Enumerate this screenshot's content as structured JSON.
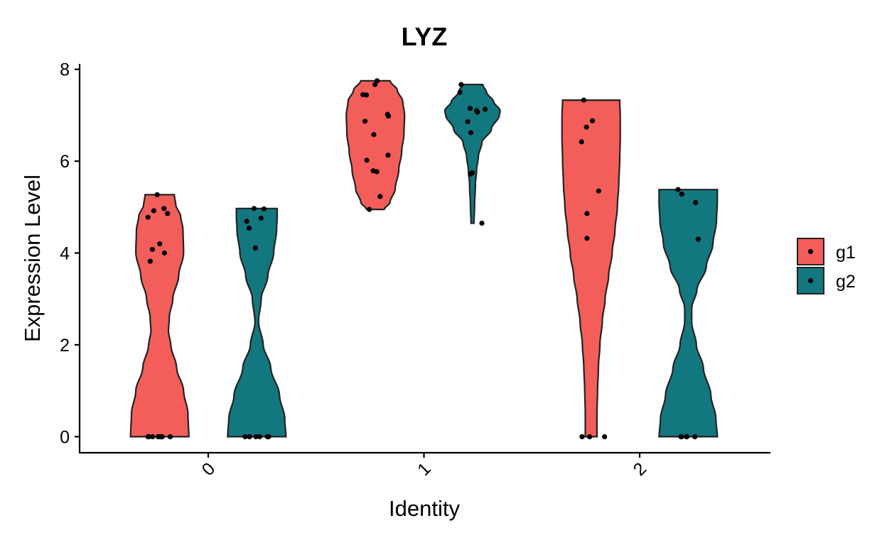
{
  "chart_data": {
    "type": "violin",
    "title": "LYZ",
    "xlabel": "Identity",
    "ylabel": "Expression Level",
    "categories": [
      "0",
      "1",
      "2"
    ],
    "ylim": [
      -0.35,
      8.15
    ],
    "yticks": [
      0,
      2,
      4,
      6,
      8
    ],
    "grid": false,
    "legend_position": "right",
    "x_tick_rotation_deg": 45,
    "series": [
      {
        "name": "g1",
        "color": "#F45E5A",
        "groups": [
          {
            "category": "0",
            "max_halfwidth": 0.225,
            "density": [
              [
                0,
                1.0
              ],
              [
                0.5,
                0.97
              ],
              [
                1.0,
                0.82
              ],
              [
                1.5,
                0.58
              ],
              [
                2.0,
                0.38
              ],
              [
                2.3,
                0.3
              ],
              [
                2.6,
                0.33
              ],
              [
                3.0,
                0.45
              ],
              [
                3.5,
                0.65
              ],
              [
                4.0,
                0.82
              ],
              [
                4.5,
                0.8
              ],
              [
                4.8,
                0.72
              ],
              [
                5.05,
                0.55
              ],
              [
                5.27,
                0.5
              ]
            ],
            "points": [
              0,
              0,
              0,
              0,
              0,
              0,
              0,
              0,
              0,
              5.27,
              4.92,
              4.86,
              4.97,
              4.78,
              4.2,
              4.08,
              4.0,
              3.82
            ]
          },
          {
            "category": "1",
            "max_halfwidth": 0.225,
            "density": [
              [
                4.95,
                0.3
              ],
              [
                5.1,
                0.5
              ],
              [
                5.4,
                0.68
              ],
              [
                5.8,
                0.8
              ],
              [
                6.2,
                0.9
              ],
              [
                6.6,
                0.98
              ],
              [
                7.0,
                1.0
              ],
              [
                7.3,
                0.94
              ],
              [
                7.55,
                0.75
              ],
              [
                7.75,
                0.5
              ]
            ],
            "points": [
              7.75,
              7.67,
              7.44,
              7.45,
              7.02,
              6.98,
              6.87,
              6.58,
              6.13,
              6.02,
              5.79,
              5.77,
              5.23,
              4.95
            ]
          },
          {
            "category": "2",
            "max_halfwidth": 0.225,
            "density": [
              [
                0,
                0.2
              ],
              [
                0.5,
                0.2
              ],
              [
                1.0,
                0.22
              ],
              [
                1.5,
                0.25
              ],
              [
                2.0,
                0.3
              ],
              [
                2.5,
                0.38
              ],
              [
                3.0,
                0.48
              ],
              [
                3.5,
                0.6
              ],
              [
                4.0,
                0.72
              ],
              [
                4.5,
                0.82
              ],
              [
                5.0,
                0.9
              ],
              [
                5.5,
                0.95
              ],
              [
                6.0,
                0.98
              ],
              [
                6.5,
                1.0
              ],
              [
                7.0,
                1.0
              ],
              [
                7.33,
                0.98
              ]
            ],
            "points": [
              0,
              0,
              0,
              7.33,
              6.88,
              6.74,
              6.42,
              5.35,
              4.86,
              4.32
            ]
          }
        ]
      },
      {
        "name": "g2",
        "color": "#137780",
        "groups": [
          {
            "category": "0",
            "max_halfwidth": 0.225,
            "density": [
              [
                0,
                1.0
              ],
              [
                0.4,
                0.96
              ],
              [
                0.9,
                0.78
              ],
              [
                1.5,
                0.48
              ],
              [
                2.0,
                0.22
              ],
              [
                2.5,
                0.06
              ],
              [
                3.0,
                0.15
              ],
              [
                3.5,
                0.38
              ],
              [
                4.0,
                0.58
              ],
              [
                4.5,
                0.68
              ],
              [
                4.8,
                0.7
              ],
              [
                4.97,
                0.7
              ]
            ],
            "points": [
              0,
              0,
              0,
              0,
              0,
              0,
              0,
              4.97,
              4.96,
              4.76,
              4.69,
              4.54,
              4.11
            ]
          },
          {
            "category": "1",
            "max_halfwidth": 0.225,
            "density": [
              [
                4.65,
                0.05
              ],
              [
                5.0,
                0.07
              ],
              [
                5.5,
                0.1
              ],
              [
                5.8,
                0.14
              ],
              [
                6.1,
                0.2
              ],
              [
                6.4,
                0.32
              ],
              [
                6.7,
                0.65
              ],
              [
                7.0,
                0.92
              ],
              [
                7.1,
                0.95
              ],
              [
                7.3,
                0.72
              ],
              [
                7.5,
                0.48
              ],
              [
                7.67,
                0.35
              ]
            ],
            "points": [
              7.67,
              7.5,
              7.15,
              7.07,
              7.1,
              7.13,
              6.86,
              6.62,
              5.75,
              5.72,
              4.65
            ]
          },
          {
            "category": "2",
            "max_halfwidth": 0.225,
            "density": [
              [
                0,
                1.0
              ],
              [
                0.4,
                0.95
              ],
              [
                0.9,
                0.78
              ],
              [
                1.5,
                0.52
              ],
              [
                2.0,
                0.28
              ],
              [
                2.5,
                0.12
              ],
              [
                2.8,
                0.12
              ],
              [
                3.2,
                0.3
              ],
              [
                3.7,
                0.62
              ],
              [
                4.2,
                0.85
              ],
              [
                4.7,
                0.97
              ],
              [
                5.1,
                1.0
              ],
              [
                5.38,
                1.0
              ]
            ],
            "points": [
              0,
              0,
              0,
              0,
              0,
              5.38,
              5.28,
              5.1,
              4.3
            ]
          }
        ]
      }
    ]
  }
}
